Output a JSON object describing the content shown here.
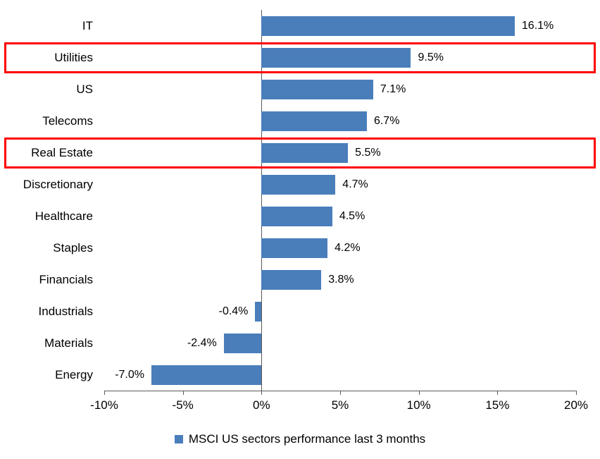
{
  "chart_data": {
    "type": "bar",
    "orientation": "horizontal",
    "title": "",
    "categories": [
      "IT",
      "Utilities",
      "US",
      "Telecoms",
      "Real Estate",
      "Discretionary",
      "Healthcare",
      "Staples",
      "Financials",
      "Industrials",
      "Materials",
      "Energy"
    ],
    "values": [
      16.1,
      9.5,
      7.1,
      6.7,
      5.5,
      4.7,
      4.5,
      4.2,
      3.8,
      -0.4,
      -2.4,
      -7.0
    ],
    "value_labels": [
      "16.1%",
      "9.5%",
      "7.1%",
      "6.7%",
      "5.5%",
      "4.7%",
      "4.5%",
      "4.2%",
      "3.8%",
      "-0.4%",
      "-2.4%",
      "-7.0%"
    ],
    "highlighted_categories": [
      "Utilities",
      "Real Estate"
    ],
    "xlim": [
      -10,
      20
    ],
    "x_ticks": [
      -10,
      -5,
      0,
      5,
      10,
      15,
      20
    ],
    "x_tick_labels": [
      "-10%",
      "-5%",
      "0%",
      "5%",
      "10%",
      "15%",
      "20%"
    ],
    "grid": false,
    "legend_position": "bottom",
    "bar_color": "#4A7EBB",
    "highlight_color": "#FF0000",
    "legend": [
      {
        "label": "MSCI US sectors performance last 3 months",
        "color": "#4A7EBB"
      }
    ]
  }
}
